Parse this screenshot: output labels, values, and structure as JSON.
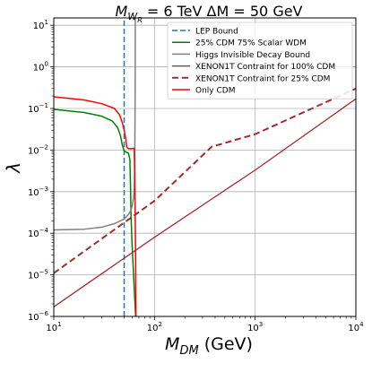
{
  "chart_data": {
    "type": "line",
    "title": {
      "main": "M",
      "sub": "W",
      "subsub": "R",
      "rest": " = 6 TeV  ΔM = 50 GeV"
    },
    "xlabel": {
      "main": "M",
      "sub": "DM",
      "rest": " (GeV)"
    },
    "ylabel": "λ",
    "xscale": "log",
    "yscale": "log",
    "xlim": [
      10,
      10000
    ],
    "ylim": [
      1e-06,
      15
    ],
    "grid": true,
    "legend_position": "upper-right",
    "x_ticks": [
      {
        "value": 10,
        "base": "10",
        "exp": "1"
      },
      {
        "value": 100,
        "base": "10",
        "exp": "2"
      },
      {
        "value": 1000,
        "base": "10",
        "exp": "3"
      },
      {
        "value": 10000,
        "base": "10",
        "exp": "4"
      }
    ],
    "y_ticks": [
      {
        "value": 1e-06,
        "base": "10",
        "exp": "−6"
      },
      {
        "value": 1e-05,
        "base": "10",
        "exp": "−5"
      },
      {
        "value": 0.0001,
        "base": "10",
        "exp": "−4"
      },
      {
        "value": 0.001,
        "base": "10",
        "exp": "−3"
      },
      {
        "value": 0.01,
        "base": "10",
        "exp": "−2"
      },
      {
        "value": 0.1,
        "base": "10",
        "exp": "−1"
      },
      {
        "value": 1,
        "base": "10",
        "exp": "0"
      },
      {
        "value": 10,
        "base": "10",
        "exp": "1"
      }
    ],
    "series": [
      {
        "name": "LEP Bound",
        "color": "#1f77b4",
        "dash": "6,3",
        "width": 1.5,
        "points": [
          [
            50,
            1e-06
          ],
          [
            50,
            15
          ]
        ]
      },
      {
        "name": "25% CDM 75% Scalar WDM",
        "color": "#008000",
        "dash": "",
        "width": 1.5,
        "points": [
          [
            10,
            0.095
          ],
          [
            20,
            0.08
          ],
          [
            30,
            0.065
          ],
          [
            38,
            0.05
          ],
          [
            43,
            0.035
          ],
          [
            46,
            0.022
          ],
          [
            48,
            0.013
          ],
          [
            50,
            0.0095
          ],
          [
            52,
            0.009
          ],
          [
            55,
            0.0085
          ],
          [
            57,
            0.006
          ],
          [
            58,
            0.0009
          ],
          [
            58.5,
            0.00025
          ],
          [
            60,
            5e-05
          ],
          [
            62,
            1e-05
          ],
          [
            65,
            1e-06
          ]
        ]
      },
      {
        "name": "Higgs Invisible Decay Bound",
        "color": "#808080",
        "dash": "",
        "width": 1.5,
        "points": [
          [
            10,
            0.00012
          ],
          [
            20,
            0.000125
          ],
          [
            30,
            0.00014
          ],
          [
            40,
            0.00017
          ],
          [
            50,
            0.00022
          ],
          [
            55,
            0.00028
          ],
          [
            58,
            0.00035
          ],
          [
            60,
            0.00045
          ],
          [
            62,
            0.0007
          ],
          [
            63,
            0.0012
          ],
          [
            63.5,
            0.003
          ],
          [
            64,
            0.03
          ],
          [
            64.3,
            0.3
          ],
          [
            64.5,
            15
          ]
        ]
      },
      {
        "name": "XENON1T Contraint for 100% CDM",
        "color": "#a52a2a",
        "dash": "",
        "width": 1.3,
        "points": [
          [
            10,
            1.7e-06
          ],
          [
            100,
            8e-05
          ],
          [
            1000,
            0.0033
          ],
          [
            10000,
            0.17
          ]
        ]
      },
      {
        "name": "XENON1T Contraint for 25% CDM",
        "color": "#a52a2a",
        "dash": "7,4",
        "width": 2,
        "points": [
          [
            10,
            1.1e-05
          ],
          [
            100,
            0.0006
          ],
          [
            370,
            0.012
          ],
          [
            1000,
            0.024
          ],
          [
            10000,
            0.3
          ]
        ]
      },
      {
        "name": "Only CDM",
        "color": "#ff0000",
        "dash": "",
        "width": 1.5,
        "points": [
          [
            10,
            0.19
          ],
          [
            20,
            0.16
          ],
          [
            30,
            0.13
          ],
          [
            40,
            0.1
          ],
          [
            45,
            0.07
          ],
          [
            48,
            0.045
          ],
          [
            50,
            0.03
          ],
          [
            52,
            0.018
          ],
          [
            53,
            0.012
          ],
          [
            55,
            0.0108
          ],
          [
            60,
            0.0108
          ],
          [
            62,
            0.011
          ],
          [
            63,
            0.011
          ],
          [
            64,
            0.0011
          ],
          [
            65,
            2e-05
          ],
          [
            65.5,
            1e-06
          ]
        ]
      }
    ]
  }
}
